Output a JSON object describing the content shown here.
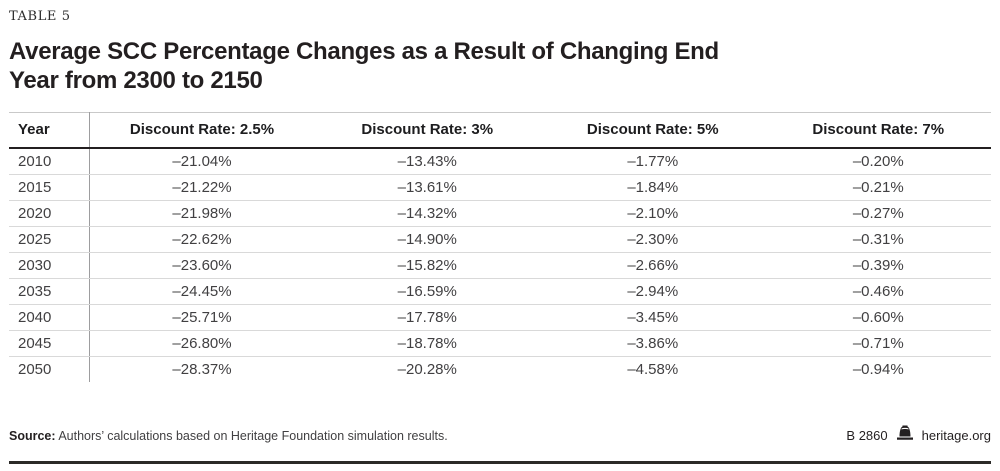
{
  "eyebrow": "TABLE 5",
  "title": {
    "line1": "Average SCC Percentage Changes as a Result of Changing End",
    "line2": "Year from 2300 to 2150"
  },
  "chart_data": {
    "type": "table",
    "title": "Average SCC Percentage Changes as a Result of Changing End Year from 2300 to 2150",
    "columns": [
      "Year",
      "Discount Rate: 2.5%",
      "Discount Rate: 3%",
      "Discount Rate: 5%",
      "Discount Rate: 7%"
    ],
    "rows": [
      {
        "year": "2010",
        "values": [
          "–21.04%",
          "–13.43%",
          "–1.77%",
          "–0.20%"
        ]
      },
      {
        "year": "2015",
        "values": [
          "–21.22%",
          "–13.61%",
          "–1.84%",
          "–0.21%"
        ]
      },
      {
        "year": "2020",
        "values": [
          "–21.98%",
          "–14.32%",
          "–2.10%",
          "–0.27%"
        ]
      },
      {
        "year": "2025",
        "values": [
          "–22.62%",
          "–14.90%",
          "–2.30%",
          "–0.31%"
        ]
      },
      {
        "year": "2030",
        "values": [
          "–23.60%",
          "–15.82%",
          "–2.66%",
          "–0.39%"
        ]
      },
      {
        "year": "2035",
        "values": [
          "–24.45%",
          "–16.59%",
          "–2.94%",
          "–0.46%"
        ]
      },
      {
        "year": "2040",
        "values": [
          "–25.71%",
          "–17.78%",
          "–3.45%",
          "–0.60%"
        ]
      },
      {
        "year": "2045",
        "values": [
          "–26.80%",
          "–18.78%",
          "–3.86%",
          "–0.71%"
        ]
      },
      {
        "year": "2050",
        "values": [
          "–28.37%",
          "–20.28%",
          "–4.58%",
          "–0.94%"
        ]
      }
    ]
  },
  "footer": {
    "source_label": "Source:",
    "source_text": " Authors’ calculations based on Heritage Foundation simulation results.",
    "report_id": "B 2860",
    "site": "heritage.org",
    "bell_icon": "liberty-bell-icon"
  },
  "colors": {
    "text_primary": "#231f20",
    "text_secondary": "#414042",
    "rule_dark": "#2b2a28",
    "rule_light": "#d9d9d9",
    "rule_top": "#c9c9c9",
    "divider_gray": "#9d9d9f"
  }
}
